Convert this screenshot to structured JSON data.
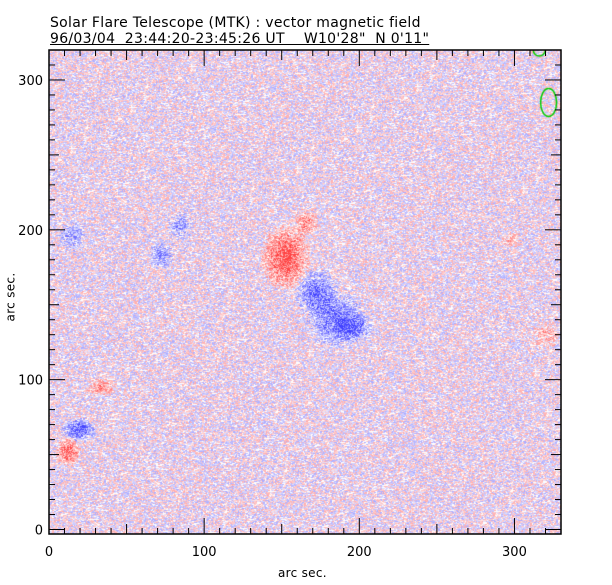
{
  "header": {
    "title": "Solar Flare Telescope (MTK) : vector magnetic field",
    "subtitle": "96/03/04  23:44:20-23:45:26 UT    W10'28\"  N 0'11\""
  },
  "chart_data": {
    "type": "heatmap",
    "title": "Solar Flare Telescope (MTK) : vector magnetic field",
    "xlabel": "arc sec.",
    "ylabel": "arc sec.",
    "xlim": [
      0,
      330
    ],
    "ylim": [
      -3,
      320
    ],
    "xticks": [
      {
        "v": 0,
        "label": "0"
      },
      {
        "v": 100,
        "label": "100"
      },
      {
        "v": 200,
        "label": "200"
      },
      {
        "v": 300,
        "label": "300"
      }
    ],
    "yticks": [
      {
        "v": 0,
        "label": "0"
      },
      {
        "v": 100,
        "label": "100"
      },
      {
        "v": 200,
        "label": "200"
      },
      {
        "v": 300,
        "label": "300"
      }
    ],
    "colors": {
      "positive": "#ff4040",
      "negative": "#5050ff",
      "contour": "#00cc00"
    },
    "regions": [
      {
        "polarity": "positive",
        "x": 152,
        "y": 182,
        "rx": 10,
        "ry": 14,
        "strength": 0.9
      },
      {
        "polarity": "positive",
        "x": 165,
        "y": 205,
        "rx": 5,
        "ry": 6,
        "strength": 0.5
      },
      {
        "polarity": "negative",
        "x": 172,
        "y": 158,
        "rx": 9,
        "ry": 10,
        "strength": 0.7
      },
      {
        "polarity": "negative",
        "x": 185,
        "y": 140,
        "rx": 12,
        "ry": 12,
        "strength": 0.7
      },
      {
        "polarity": "negative",
        "x": 196,
        "y": 135,
        "rx": 8,
        "ry": 6,
        "strength": 0.6
      },
      {
        "polarity": "negative",
        "x": 19,
        "y": 67,
        "rx": 7,
        "ry": 5,
        "strength": 0.8
      },
      {
        "polarity": "positive",
        "x": 12,
        "y": 52,
        "rx": 5,
        "ry": 6,
        "strength": 0.8
      },
      {
        "polarity": "positive",
        "x": 33,
        "y": 95,
        "rx": 6,
        "ry": 4,
        "strength": 0.5
      },
      {
        "polarity": "negative",
        "x": 15,
        "y": 196,
        "rx": 6,
        "ry": 6,
        "strength": 0.4
      },
      {
        "polarity": "negative",
        "x": 72,
        "y": 183,
        "rx": 5,
        "ry": 6,
        "strength": 0.5
      },
      {
        "polarity": "negative",
        "x": 84,
        "y": 203,
        "rx": 5,
        "ry": 6,
        "strength": 0.4
      },
      {
        "polarity": "positive",
        "x": 320,
        "y": 130,
        "rx": 6,
        "ry": 6,
        "strength": 0.3
      },
      {
        "polarity": "positive",
        "x": 297,
        "y": 194,
        "rx": 4,
        "ry": 4,
        "strength": 0.3
      }
    ]
  }
}
